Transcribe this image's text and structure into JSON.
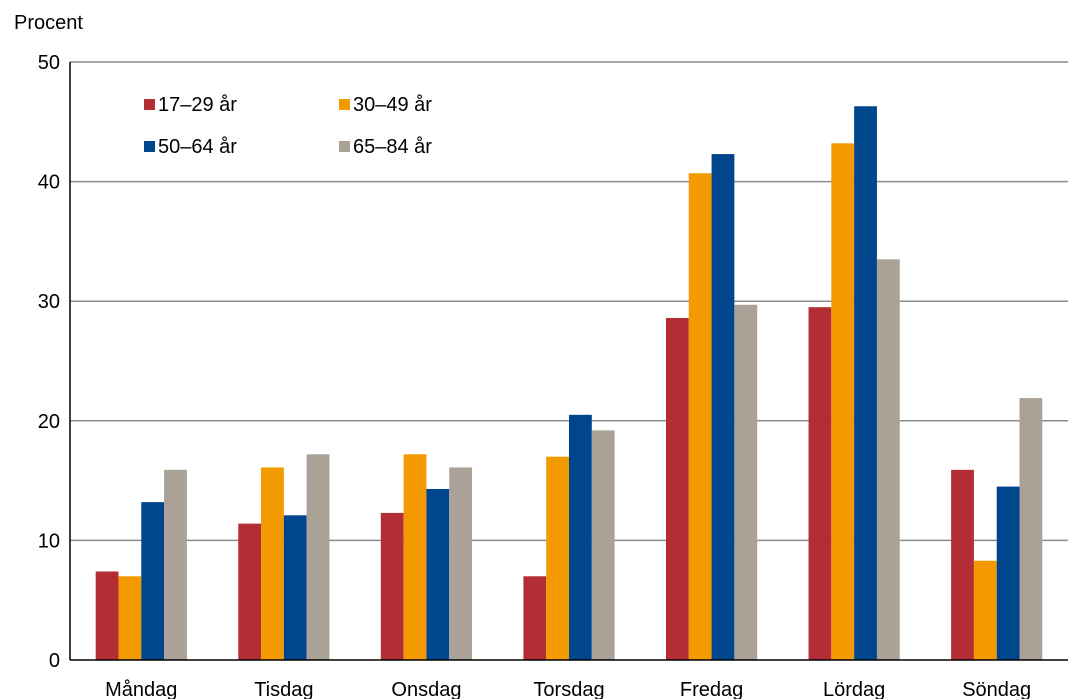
{
  "chart_data": {
    "type": "bar",
    "ylabel": "Procent",
    "ylim": [
      0,
      50
    ],
    "yticks": [
      0,
      10,
      20,
      30,
      40,
      50
    ],
    "grid": true,
    "legend_placement": "top-left",
    "categories": [
      "Måndag",
      "Tisdag",
      "Onsdag",
      "Torsdag",
      "Fredag",
      "Lördag",
      "Söndag"
    ],
    "series": [
      {
        "name": "17–29 år",
        "color": "#b22e34",
        "values": [
          7.4,
          11.4,
          12.3,
          7.0,
          28.6,
          29.5,
          15.9
        ]
      },
      {
        "name": "30–49 år",
        "color": "#f29a00",
        "values": [
          7.0,
          16.1,
          17.2,
          17.0,
          40.7,
          43.2,
          8.3
        ]
      },
      {
        "name": "50–64 år",
        "color": "#00468c",
        "values": [
          13.2,
          12.1,
          14.3,
          20.5,
          42.3,
          46.3,
          14.5
        ]
      },
      {
        "name": "65–84 år",
        "color": "#aaa197",
        "values": [
          15.9,
          17.2,
          16.1,
          19.2,
          29.7,
          33.5,
          21.9
        ]
      }
    ]
  }
}
